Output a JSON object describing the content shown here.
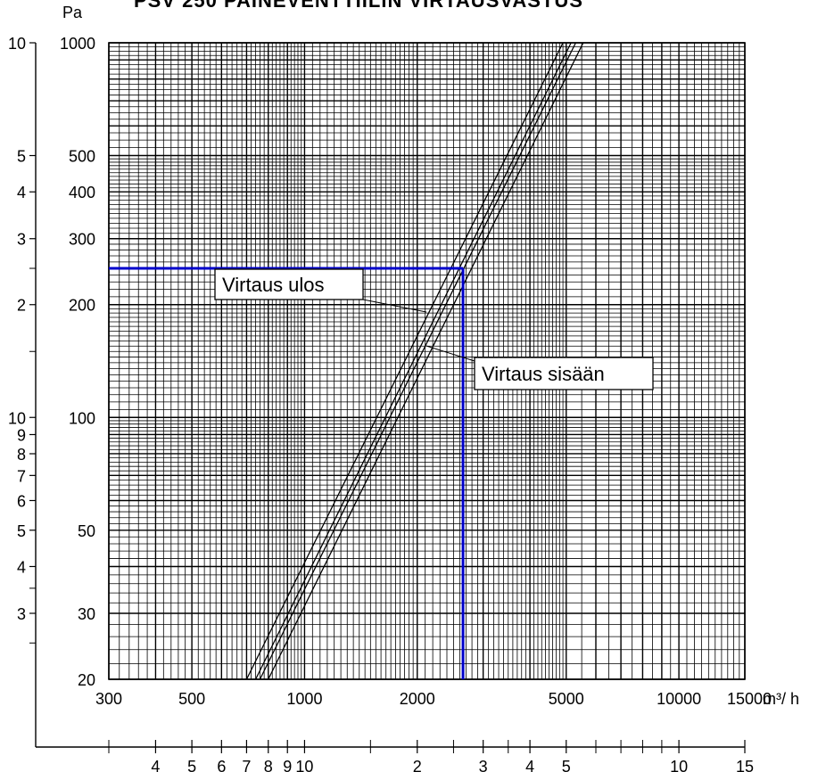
{
  "chart_data": {
    "type": "line",
    "title": "PSV 250 PAINEVENTTIILIN VIRTAUSVASTUS",
    "y_unit_label": "Pa",
    "x_unit_label": "m³/ h",
    "x_scale": "log",
    "y_scale": "log",
    "xlim": [
      300,
      15000
    ],
    "ylim": [
      20,
      1000
    ],
    "x_tick_labels": [
      "300",
      "500",
      "1000",
      "2000",
      "5000",
      "10000",
      "15000"
    ],
    "y_tick_labels": [
      "20",
      "30",
      "50",
      "100",
      "200",
      "300",
      "400",
      "500",
      "1000"
    ],
    "outer_left_scale_labels": [
      "10",
      "5",
      "4",
      "3",
      "2",
      "10",
      "9",
      "8",
      "7",
      "6",
      "5",
      "4",
      "3"
    ],
    "bottom_scale_labels": [
      "4",
      "5",
      "6",
      "7",
      "8",
      "9",
      "10",
      "2",
      "3",
      "4",
      "5",
      "10",
      "15"
    ],
    "grid": true,
    "series": [
      {
        "name": "Virtaus ulos",
        "x": [
          700,
          740,
          4900,
          5150
        ],
        "y": [
          20,
          20,
          1000,
          1000
        ]
      },
      {
        "name": "Virtaus sisään",
        "x": [
          760,
          800,
          5300,
          5550
        ],
        "y": [
          20,
          20,
          1000,
          1000
        ]
      }
    ],
    "annotations": [
      {
        "text": "Virtaus ulos"
      },
      {
        "text": "Virtaus sisään"
      }
    ],
    "reference_lines": {
      "x": 2650,
      "y": 250,
      "color": "#0000cc"
    }
  }
}
